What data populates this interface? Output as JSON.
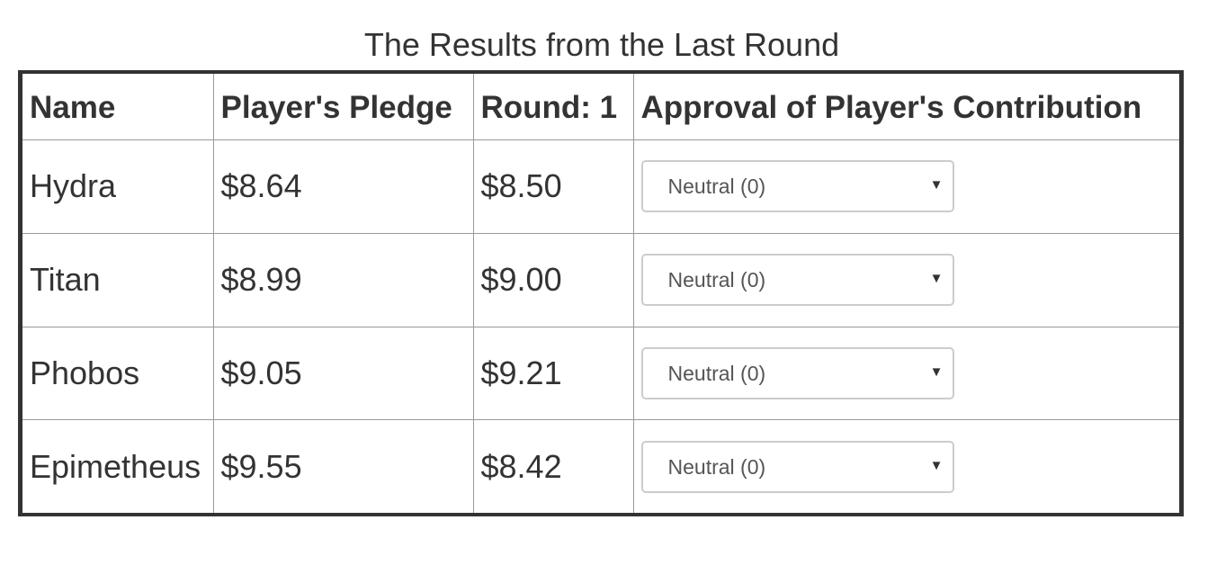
{
  "caption": "The Results from the Last Round",
  "table": {
    "headers": [
      "Name",
      "Player's Pledge",
      "Round: 1",
      "Approval of Player's Contribution"
    ],
    "rows": [
      {
        "name": "Hydra",
        "pledge": "$8.64",
        "round": "$8.50",
        "approval": "Neutral (0)"
      },
      {
        "name": "Titan",
        "pledge": "$8.99",
        "round": "$9.00",
        "approval": "Neutral (0)"
      },
      {
        "name": "Phobos",
        "pledge": "$9.05",
        "round": "$9.21",
        "approval": "Neutral (0)"
      },
      {
        "name": "Epimetheus",
        "pledge": "$9.55",
        "round": "$8.42",
        "approval": "Neutral (0)"
      }
    ]
  },
  "icons": {
    "dropdown": "chevron-down-icon"
  },
  "colors": {
    "text": "#333333",
    "table_border": "#333333",
    "cell_border": "#999999",
    "select_border": "#cccccc"
  }
}
